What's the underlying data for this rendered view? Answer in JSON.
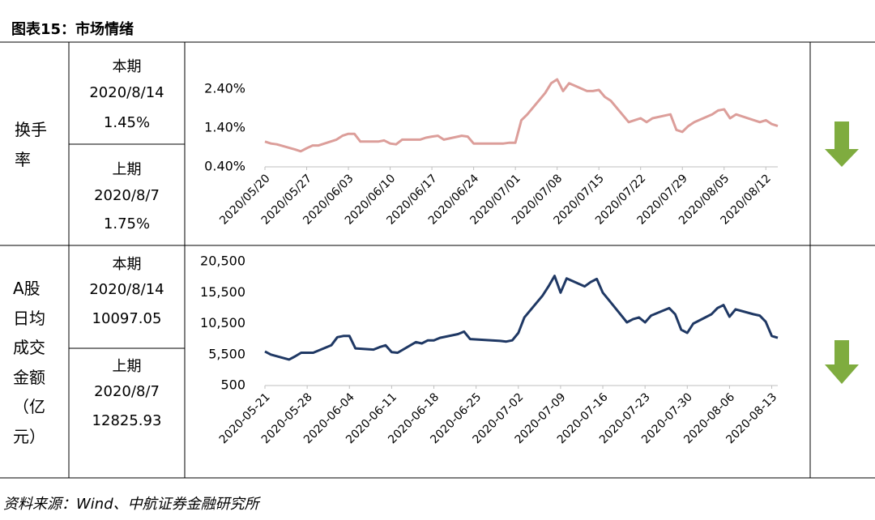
{
  "title": "图表15：市场情绪",
  "table": {
    "rows": [
      {
        "label": "换手率",
        "current": {
          "period": "本期",
          "date": "2020/8/14",
          "value": "1.45%"
        },
        "previous": {
          "period": "上期",
          "date": "2020/8/7",
          "value": "1.75%"
        }
      },
      {
        "label": "A股日均成交金额（亿元）",
        "current": {
          "period": "本期",
          "date": "2020/8/14",
          "value": "10097.05"
        },
        "previous": {
          "period": "上期",
          "date": "2020/8/7",
          "value": "12825.93"
        }
      }
    ]
  },
  "chart_data": [
    {
      "type": "line",
      "color": "#dc9e9a",
      "x": [
        "2020/05/20",
        "2020/05/21",
        "2020/05/22",
        "2020/05/25",
        "2020/05/26",
        "2020/05/27",
        "2020/05/28",
        "2020/05/29",
        "2020/06/01",
        "2020/06/02",
        "2020/06/03",
        "2020/06/04",
        "2020/06/05",
        "2020/06/08",
        "2020/06/09",
        "2020/06/10",
        "2020/06/11",
        "2020/06/12",
        "2020/06/15",
        "2020/06/16",
        "2020/06/17",
        "2020/06/18",
        "2020/06/19",
        "2020/06/22",
        "2020/06/23",
        "2020/06/24",
        "2020/06/29",
        "2020/06/30",
        "2020/07/01",
        "2020/07/02",
        "2020/07/03",
        "2020/07/06",
        "2020/07/07",
        "2020/07/08",
        "2020/07/09",
        "2020/07/10",
        "2020/07/13",
        "2020/07/14",
        "2020/07/15",
        "2020/07/16",
        "2020/07/17",
        "2020/07/20",
        "2020/07/21",
        "2020/07/22",
        "2020/07/23",
        "2020/07/24",
        "2020/07/27",
        "2020/07/28",
        "2020/07/29",
        "2020/07/30",
        "2020/07/31",
        "2020/08/03",
        "2020/08/04",
        "2020/08/05",
        "2020/08/06",
        "2020/08/07",
        "2020/08/10",
        "2020/08/11",
        "2020/08/12",
        "2020/08/13",
        "2020/08/14"
      ],
      "values": [
        1.05,
        1.0,
        0.98,
        0.85,
        0.8,
        0.88,
        0.95,
        0.95,
        1.1,
        1.2,
        1.25,
        1.25,
        1.05,
        1.05,
        1.08,
        1.0,
        0.98,
        1.1,
        1.1,
        1.15,
        1.18,
        1.2,
        1.1,
        1.2,
        1.18,
        1.0,
        1.0,
        1.02,
        1.02,
        1.6,
        1.75,
        2.3,
        2.55,
        2.65,
        2.35,
        2.55,
        2.35,
        2.35,
        2.38,
        2.2,
        2.1,
        1.55,
        1.6,
        1.65,
        1.55,
        1.65,
        1.75,
        1.35,
        1.3,
        1.45,
        1.55,
        1.75,
        1.85,
        1.88,
        1.65,
        1.75,
        1.6,
        1.55,
        1.6,
        1.5,
        1.45
      ],
      "ylim": [
        0.4,
        2.9
      ],
      "yticks": [
        {
          "value": 0.4,
          "label": "0.40%"
        },
        {
          "value": 1.4,
          "label": "1.40%"
        },
        {
          "value": 2.4,
          "label": "2.40%"
        }
      ],
      "xticks": [
        "2020/05/20",
        "2020/05/27",
        "2020/06/03",
        "2020/06/10",
        "2020/06/17",
        "2020/06/24",
        "2020/07/01",
        "2020/07/08",
        "2020/07/15",
        "2020/07/22",
        "2020/07/29",
        "2020/08/05",
        "2020/08/12"
      ]
    },
    {
      "type": "line",
      "color": "#1f3864",
      "x": [
        "2020-05-21",
        "2020-05-22",
        "2020-05-25",
        "2020-05-26",
        "2020-05-27",
        "2020-05-28",
        "2020-05-29",
        "2020-06-01",
        "2020-06-02",
        "2020-06-03",
        "2020-06-04",
        "2020-06-05",
        "2020-06-08",
        "2020-06-09",
        "2020-06-10",
        "2020-06-11",
        "2020-06-12",
        "2020-06-15",
        "2020-06-16",
        "2020-06-17",
        "2020-06-18",
        "2020-06-19",
        "2020-06-22",
        "2020-06-23",
        "2020-06-24",
        "2020-06-29",
        "2020-06-30",
        "2020-07-01",
        "2020-07-02",
        "2020-07-03",
        "2020-07-06",
        "2020-07-07",
        "2020-07-08",
        "2020-07-09",
        "2020-07-10",
        "2020-07-13",
        "2020-07-14",
        "2020-07-15",
        "2020-07-16",
        "2020-07-17",
        "2020-07-20",
        "2020-07-21",
        "2020-07-22",
        "2020-07-23",
        "2020-07-24",
        "2020-07-27",
        "2020-07-28",
        "2020-07-29",
        "2020-07-30",
        "2020-07-31",
        "2020-08-03",
        "2020-08-04",
        "2020-08-05",
        "2020-08-06",
        "2020-08-07",
        "2020-08-10",
        "2020-08-11",
        "2020-08-12",
        "2020-08-13",
        "2020-08-14"
      ],
      "values": [
        6000,
        5500,
        4700,
        5200,
        5800,
        5800,
        5800,
        7000,
        8300,
        8500,
        8500,
        6500,
        6300,
        6700,
        7000,
        5900,
        5800,
        7500,
        7300,
        7800,
        7800,
        8200,
        8800,
        9200,
        8000,
        7700,
        7600,
        7800,
        9000,
        11500,
        15000,
        16500,
        18200,
        15500,
        17800,
        16500,
        17200,
        17700,
        15500,
        14300,
        10700,
        11200,
        11500,
        10700,
        11800,
        13000,
        12000,
        9500,
        9000,
        10500,
        12000,
        13000,
        13500,
        11600,
        12800,
        12000,
        11800,
        10800,
        8500,
        8200
      ],
      "ylim": [
        500,
        20500
      ],
      "yticks": [
        500,
        {
          "value": 5500,
          "label": "5,500"
        },
        {
          "value": 10500,
          "label": "10,500"
        },
        {
          "value": 15500,
          "label": "15,500"
        },
        {
          "value": 20500,
          "label": "20,500"
        }
      ],
      "xticks": [
        "2020-05-21",
        "2020-05-28",
        "2020-06-04",
        "2020-06-11",
        "2020-06-18",
        "2020-06-25",
        "2020-07-02",
        "2020-07-09",
        "2020-07-16",
        "2020-07-23",
        "2020-07-30",
        "2020-08-06",
        "2020-08-13"
      ]
    }
  ],
  "source": "资料来源：Wind、中航证券金融研究所"
}
